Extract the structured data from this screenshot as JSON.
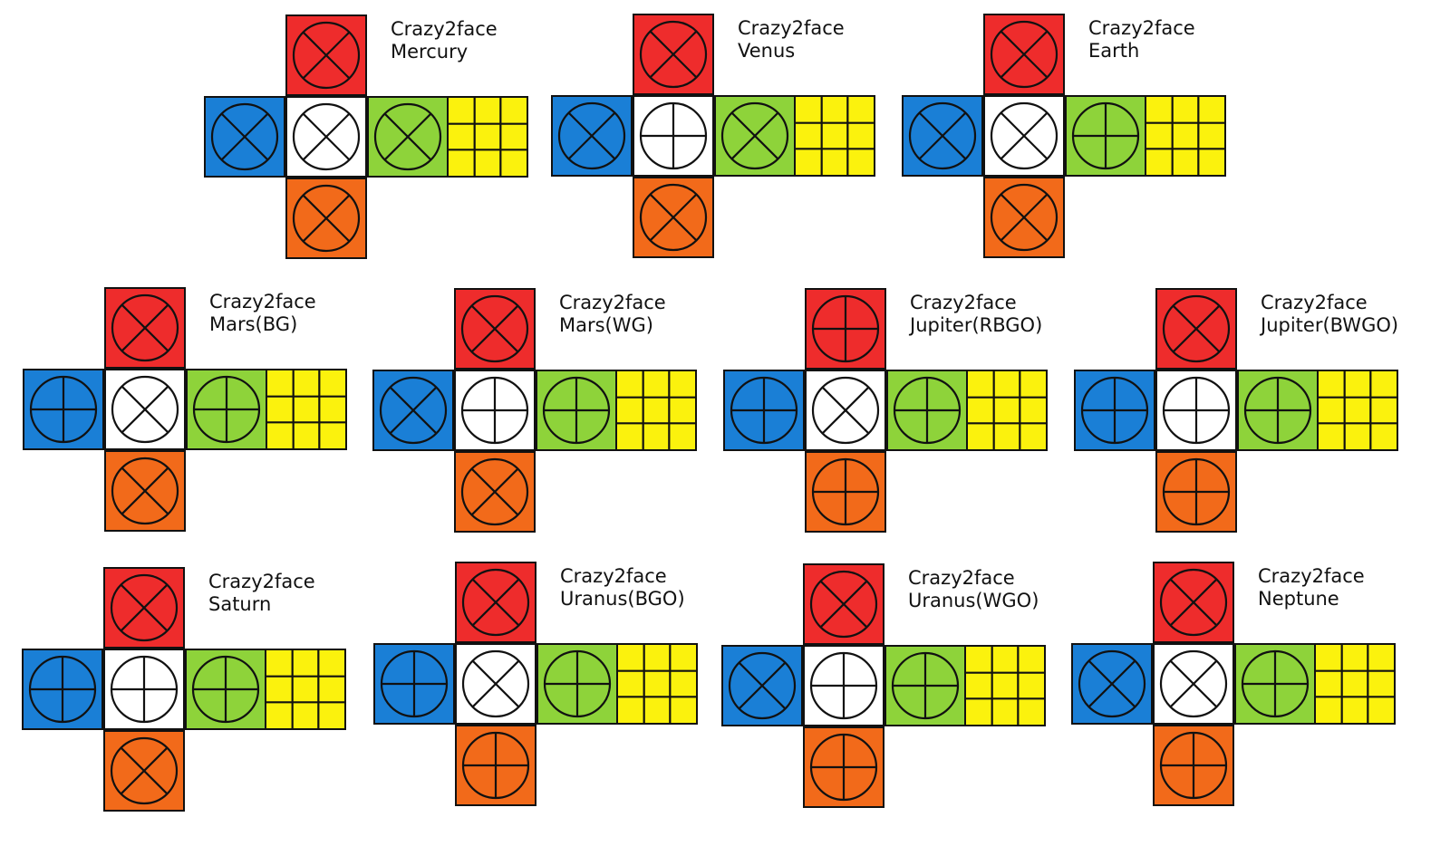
{
  "colors": {
    "red": "#ee2c2c",
    "blue": "#1a7fd6",
    "white": "#ffffff",
    "green": "#8ed33a",
    "yellow": "#fbf20d",
    "orange": "#f26a1a",
    "line": "#111111"
  },
  "puzzles": [
    {
      "line1": "Crazy2face",
      "line2": "Mercury",
      "faces": {
        "top": "cross",
        "left": "cross",
        "center": "cross",
        "right": "cross",
        "bottom": "cross"
      }
    },
    {
      "line1": "Crazy2face",
      "line2": "Venus",
      "faces": {
        "top": "cross",
        "left": "cross",
        "center": "plus",
        "right": "cross",
        "bottom": "cross"
      }
    },
    {
      "line1": "Crazy2face",
      "line2": "Earth",
      "faces": {
        "top": "cross",
        "left": "cross",
        "center": "cross",
        "right": "plus",
        "bottom": "cross"
      }
    },
    {
      "line1": "Crazy2face",
      "line2": "Mars(BG)",
      "faces": {
        "top": "cross",
        "left": "plus",
        "center": "cross",
        "right": "plus",
        "bottom": "cross"
      }
    },
    {
      "line1": "Crazy2face",
      "line2": "Mars(WG)",
      "faces": {
        "top": "cross",
        "left": "cross",
        "center": "plus",
        "right": "plus",
        "bottom": "cross"
      }
    },
    {
      "line1": "Crazy2face",
      "line2": "Jupiter(RBGO)",
      "faces": {
        "top": "plus",
        "left": "plus",
        "center": "cross",
        "right": "plus",
        "bottom": "plus"
      }
    },
    {
      "line1": "Crazy2face",
      "line2": "Jupiter(BWGO)",
      "faces": {
        "top": "cross",
        "left": "plus",
        "center": "plus",
        "right": "plus",
        "bottom": "plus"
      }
    },
    {
      "line1": "Crazy2face",
      "line2": "Saturn",
      "faces": {
        "top": "cross",
        "left": "plus",
        "center": "plus",
        "right": "plus",
        "bottom": "cross"
      }
    },
    {
      "line1": "Crazy2face",
      "line2": "Uranus(BGO)",
      "faces": {
        "top": "cross",
        "left": "plus",
        "center": "cross",
        "right": "plus",
        "bottom": "plus"
      }
    },
    {
      "line1": "Crazy2face",
      "line2": "Uranus(WGO)",
      "faces": {
        "top": "cross",
        "left": "cross",
        "center": "plus",
        "right": "plus",
        "bottom": "plus"
      }
    },
    {
      "line1": "Crazy2face",
      "line2": "Neptune",
      "faces": {
        "top": "cross",
        "left": "cross",
        "center": "cross",
        "right": "plus",
        "bottom": "plus"
      }
    }
  ]
}
